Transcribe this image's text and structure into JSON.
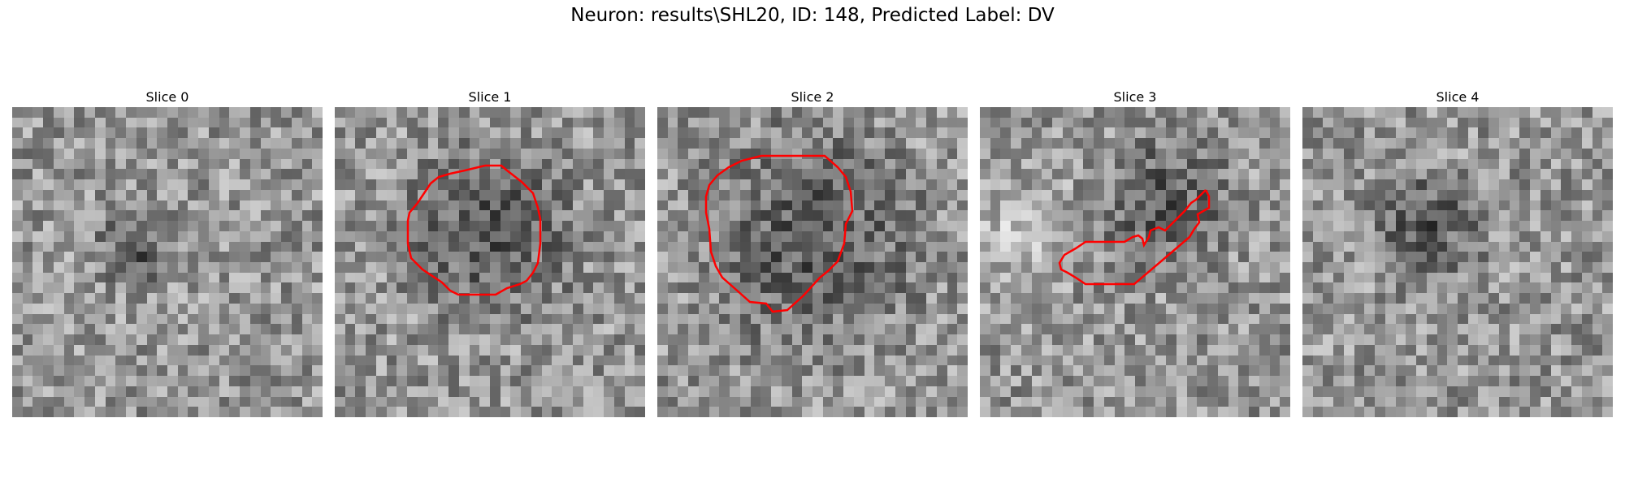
{
  "figure": {
    "title": "Neuron: results\\SHL20, ID: 148, Predicted Label: DV"
  },
  "colors": {
    "outline": "#ff0000",
    "background": "#ffffff"
  },
  "panels": [
    {
      "title": "Slice 0",
      "has_outline": false
    },
    {
      "title": "Slice 1",
      "has_outline": true
    },
    {
      "title": "Slice 2",
      "has_outline": true
    },
    {
      "title": "Slice 3",
      "has_outline": true
    },
    {
      "title": "Slice 4",
      "has_outline": false
    }
  ]
}
